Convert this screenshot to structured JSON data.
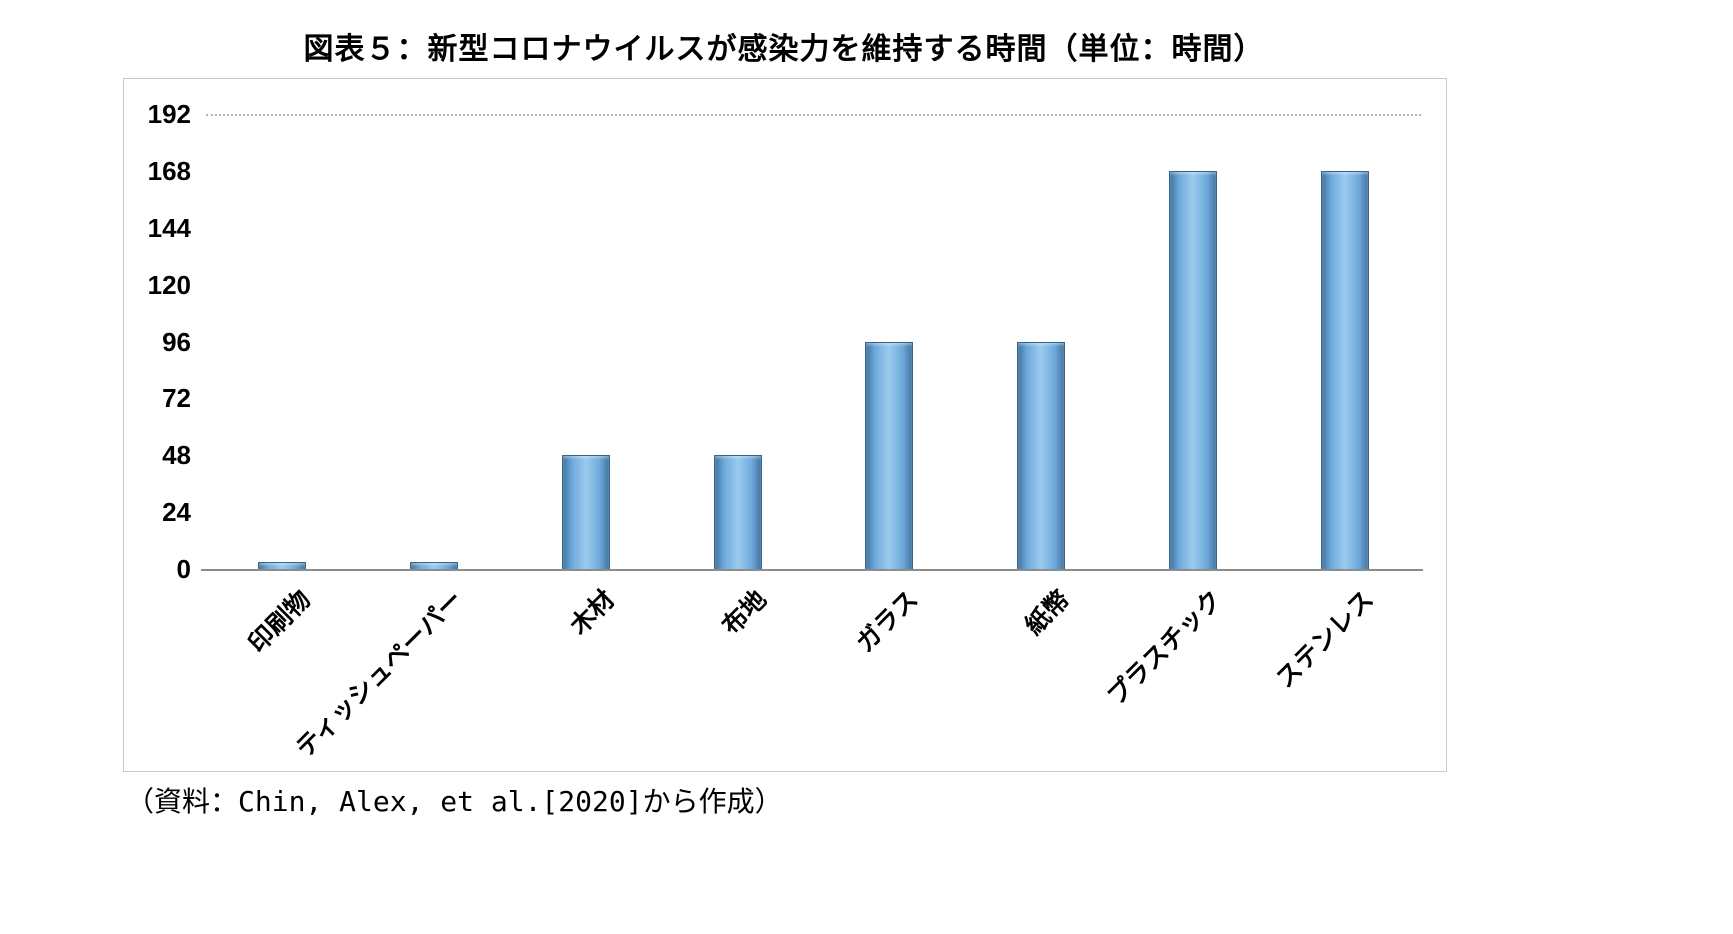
{
  "title": "図表５：新型コロナウイルスが感染力を維持する時間（単位：時間）",
  "source_note": "（資料：Chin, Alex, et al.[2020]から作成）",
  "chart_data": {
    "type": "bar",
    "title": "図表５：新型コロナウイルスが感染力を維持する時間（単位：時間）",
    "unit": "時間",
    "categories": [
      "印刷物",
      "ティッシュペーパー",
      "木材",
      "布地",
      "ガラス",
      "紙幣",
      "プラスチック",
      "ステンレス"
    ],
    "values": [
      3,
      3,
      48,
      48,
      96,
      96,
      168,
      168
    ],
    "xlabel": "",
    "ylabel": "",
    "y_ticks": [
      0,
      24,
      48,
      72,
      96,
      120,
      144,
      168,
      192
    ],
    "ylim": [
      0,
      192
    ],
    "grid": "dotted gridline at 192 only",
    "legend": "none",
    "bar_color": "#6ea9dc",
    "bar_highlight_color": "#9ccbee",
    "bar_edge_color": "#38638c",
    "axis_color": "#8c8c8c",
    "gridline_color": "#b3b3b3"
  }
}
